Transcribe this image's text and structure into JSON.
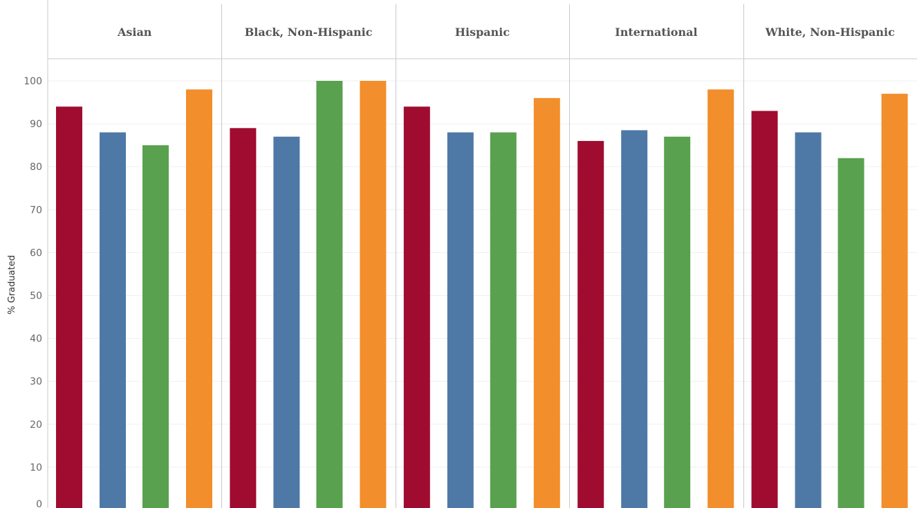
{
  "chart_data": {
    "type": "bar",
    "panels": [
      "Asian",
      "Black, Non-Hispanic",
      "Hispanic",
      "International",
      "White, Non-Hispanic"
    ],
    "ylabel": "% Graduated",
    "ylim": [
      0,
      100
    ],
    "yticks": [
      "0",
      "10",
      "20",
      "30",
      "40",
      "50",
      "60",
      "70",
      "80",
      "90",
      "100"
    ],
    "grid": true,
    "series": [
      {
        "color": "#A00C30",
        "values": [
          94,
          89,
          94,
          86,
          93
        ]
      },
      {
        "color": "#4E79A7",
        "values": [
          88,
          87,
          88,
          88.5,
          88
        ]
      },
      {
        "color": "#59A14F",
        "values": [
          85,
          100,
          88,
          87,
          82
        ]
      },
      {
        "color": "#F28E2B",
        "values": [
          98,
          100,
          96,
          98,
          97
        ]
      }
    ]
  }
}
